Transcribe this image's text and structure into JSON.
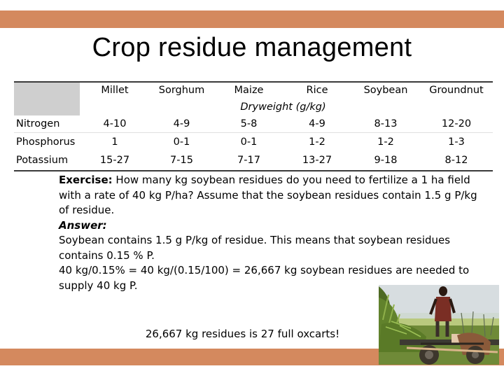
{
  "slide": {
    "title": "Crop residue management"
  },
  "table": {
    "columns": [
      "Millet",
      "Sorghum",
      "Maize",
      "Rice",
      "Soybean",
      "Groundnut"
    ],
    "subheader": "Dryweight (g/kg)",
    "rows": [
      {
        "label": "Nitrogen",
        "values": [
          "4-10",
          "4-9",
          "5-8",
          "4-9",
          "8-13",
          "12-20"
        ]
      },
      {
        "label": "Phosphorus",
        "values": [
          "1",
          "0-1",
          "0-1",
          "1-2",
          "1-2",
          "1-3"
        ]
      },
      {
        "label": "Potassium",
        "values": [
          "15-27",
          "7-15",
          "7-17",
          "13-27",
          "9-18",
          "8-12"
        ]
      }
    ]
  },
  "exercise": {
    "label": "Exercise:",
    "question_line1": "How many kg soybean residues do you need to fertilize a 1 ha field",
    "question_line2": "with a rate of 40 kg P/ha? Assume that the soybean residues contain 1.5 g P/kg",
    "question_line3": "of residue.",
    "answer_label": "Answer:",
    "answer_line1": "Soybean contains 1.5 g P/kg of residue. This means that soybean residues",
    "answer_line2": "contains 0.15 % P.",
    "answer_line3": "40 kg/0.15% = 40 kg/(0.15/100) = 26,667 kg soybean residues are needed to",
    "answer_line4": "supply 40 kg P.",
    "conclusion": "26,667 kg residues is 27 full oxcarts!"
  }
}
